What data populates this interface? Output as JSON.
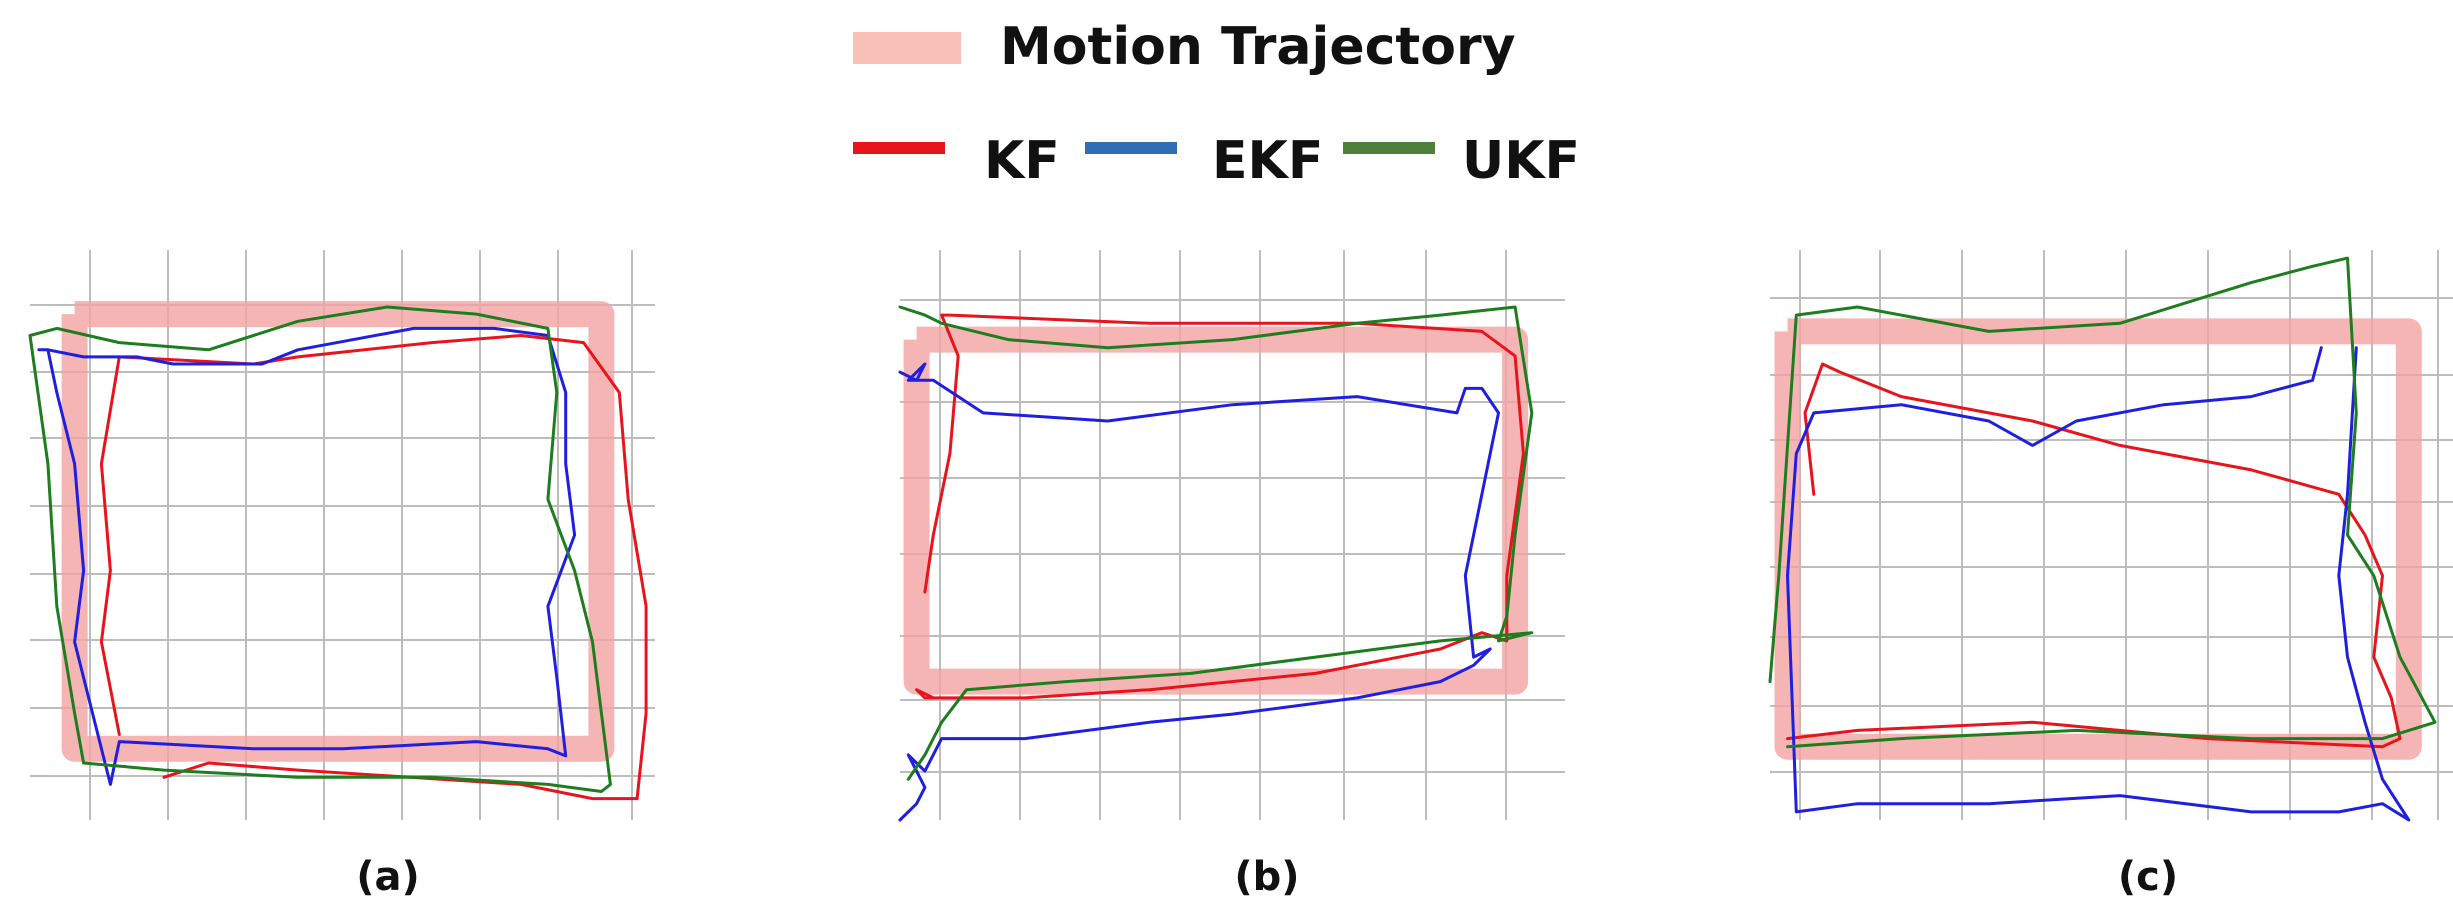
{
  "legend": {
    "motion_label": "Motion Trajectory",
    "kf_label": "KF",
    "ekf_label": "EKF",
    "ukf_label": "UKF"
  },
  "colors": {
    "motion": "#f4a3a3",
    "kf": "#e8141b",
    "ekf": "#1f1fe0",
    "ukf": "#1e7d1e",
    "legend_ekf": "#2f6db5",
    "legend_ukf": "#4f7f3a",
    "legend_motion": "#f9c0b8",
    "grid": "#bdbdbd"
  },
  "chart_data": [
    {
      "type": "line",
      "caption": "(a)",
      "grid": true,
      "xlim": [
        0,
        7
      ],
      "ylim": [
        0,
        8
      ],
      "series": [
        {
          "name": "Motion Trajectory",
          "x": [
            0.5,
            6.4,
            6.4,
            0.5,
            0.5
          ],
          "y": [
            7.1,
            7.1,
            1.0,
            1.0,
            7.1
          ]
        },
        {
          "name": "KF",
          "x": [
            1.0,
            0.8,
            0.9,
            0.8,
            1.0,
            2.5,
            3.0,
            4.5,
            5.5,
            6.2,
            6.6,
            6.7,
            6.9,
            6.9,
            6.8,
            6.3,
            5.5,
            3.0,
            2.0,
            1.5
          ],
          "y": [
            1.2,
            2.5,
            3.5,
            5.0,
            6.5,
            6.4,
            6.5,
            6.7,
            6.8,
            6.7,
            6.0,
            4.5,
            3.0,
            1.5,
            0.3,
            0.3,
            0.5,
            0.7,
            0.8,
            0.6
          ]
        },
        {
          "name": "EKF",
          "x": [
            0.1,
            0.2,
            0.6,
            1.2,
            1.6,
            2.6,
            3.0,
            4.3,
            5.2,
            5.8,
            6.0,
            6.0,
            6.1,
            5.8,
            5.9,
            6.0,
            5.8,
            5.0,
            3.5,
            2.5,
            1.0,
            0.9,
            0.7,
            0.5,
            0.6,
            0.5,
            0.3,
            0.2
          ],
          "y": [
            6.6,
            6.6,
            6.5,
            6.5,
            6.4,
            6.4,
            6.6,
            6.9,
            6.9,
            6.8,
            6.0,
            5.0,
            4.0,
            3.0,
            2.0,
            0.9,
            1.0,
            1.1,
            1.0,
            1.0,
            1.1,
            0.5,
            1.5,
            2.5,
            3.5,
            5.0,
            6.0,
            6.6
          ]
        },
        {
          "name": "UKF",
          "x": [
            0.0,
            0.3,
            1.0,
            2.0,
            3.0,
            4.0,
            5.0,
            5.8,
            5.9,
            5.8,
            6.1,
            6.3,
            6.4,
            6.5,
            6.4,
            5.8,
            4.5,
            3.0,
            1.5,
            0.6,
            0.5,
            0.3,
            0.2,
            0.0
          ],
          "y": [
            6.8,
            6.9,
            6.7,
            6.6,
            7.0,
            7.2,
            7.1,
            6.9,
            6.0,
            4.5,
            3.5,
            2.5,
            1.5,
            0.5,
            0.4,
            0.5,
            0.6,
            0.6,
            0.7,
            0.8,
            1.5,
            3.0,
            5.0,
            6.8
          ]
        }
      ]
    },
    {
      "type": "line",
      "caption": "(b)",
      "grid": true,
      "xlim": [
        0,
        8
      ],
      "ylim": [
        0,
        7
      ],
      "series": [
        {
          "name": "Motion Trajectory",
          "x": [
            0.2,
            7.4,
            7.4,
            0.2,
            0.2
          ],
          "y": [
            5.9,
            5.9,
            1.7,
            1.7,
            5.9
          ]
        },
        {
          "name": "KF",
          "x": [
            0.3,
            0.4,
            0.6,
            0.7,
            0.5,
            0.6,
            3.0,
            5.5,
            7.0,
            7.4,
            7.5,
            7.3,
            7.3,
            7.0,
            6.5,
            5.0,
            3.0,
            1.5,
            0.3,
            0.2,
            0.4
          ],
          "y": [
            2.8,
            3.5,
            4.5,
            5.7,
            6.2,
            6.2,
            6.1,
            6.1,
            6.0,
            5.7,
            4.5,
            3.0,
            2.2,
            2.3,
            2.1,
            1.8,
            1.6,
            1.5,
            1.5,
            1.6,
            1.5
          ]
        },
        {
          "name": "EKF",
          "x": [
            0.0,
            0.2,
            0.3,
            0.1,
            0.4,
            1.0,
            2.5,
            4.0,
            5.5,
            6.7,
            6.8,
            7.0,
            7.2,
            7.0,
            6.8,
            6.9,
            7.1,
            6.9,
            6.5,
            5.5,
            4.0,
            3.0,
            1.5,
            0.5,
            0.3,
            0.1,
            0.3,
            0.2,
            0.0
          ],
          "y": [
            5.5,
            5.4,
            5.6,
            5.4,
            5.4,
            5.0,
            4.9,
            5.1,
            5.2,
            5.0,
            5.3,
            5.3,
            5.0,
            4.0,
            3.0,
            2.0,
            2.1,
            1.9,
            1.7,
            1.5,
            1.3,
            1.2,
            1.0,
            1.0,
            0.6,
            0.8,
            0.4,
            0.2,
            0.0
          ]
        },
        {
          "name": "UKF",
          "x": [
            0.0,
            0.3,
            0.5,
            0.9,
            1.3,
            2.5,
            4.0,
            5.5,
            6.5,
            7.4,
            7.6,
            7.4,
            7.3,
            7.2,
            7.6,
            6.5,
            5.0,
            3.5,
            2.0,
            0.8,
            0.5,
            0.3,
            0.1
          ],
          "y": [
            6.3,
            6.2,
            6.1,
            6.0,
            5.9,
            5.8,
            5.9,
            6.1,
            6.2,
            6.3,
            5.0,
            3.5,
            2.5,
            2.2,
            2.3,
            2.2,
            2.0,
            1.8,
            1.7,
            1.6,
            1.2,
            0.8,
            0.5
          ]
        }
      ]
    },
    {
      "type": "line",
      "caption": "(c)",
      "grid": true,
      "xlim": [
        0,
        8
      ],
      "ylim": [
        0,
        7
      ],
      "series": [
        {
          "name": "Motion Trajectory",
          "x": [
            0.2,
            7.3,
            7.3,
            0.2,
            0.2
          ],
          "y": [
            6.0,
            6.0,
            0.9,
            0.9,
            6.0
          ]
        },
        {
          "name": "KF",
          "x": [
            0.5,
            0.4,
            0.6,
            0.8,
            1.5,
            3.0,
            4.0,
            5.5,
            6.5,
            6.8,
            7.0,
            6.9,
            7.1,
            7.2,
            7.0,
            5.0,
            3.0,
            1.0,
            0.2
          ],
          "y": [
            4.0,
            5.0,
            5.6,
            5.5,
            5.2,
            4.9,
            4.6,
            4.3,
            4.0,
            3.5,
            3.0,
            2.0,
            1.5,
            1.0,
            0.9,
            1.0,
            1.2,
            1.1,
            1.0
          ]
        },
        {
          "name": "EKF",
          "x": [
            6.7,
            6.6,
            6.5,
            6.6,
            6.8,
            7.0,
            7.3,
            7.0,
            6.5,
            5.5,
            4.0,
            2.5,
            1.0,
            0.3,
            0.2,
            0.3,
            0.5,
            1.5,
            2.5,
            3.0,
            3.5,
            4.5,
            5.5,
            6.2,
            6.3
          ],
          "y": [
            5.8,
            4.0,
            3.0,
            2.0,
            1.2,
            0.5,
            0.0,
            0.2,
            0.1,
            0.1,
            0.3,
            0.2,
            0.2,
            0.1,
            3.0,
            4.5,
            5.0,
            5.1,
            4.9,
            4.6,
            4.9,
            5.1,
            5.2,
            5.4,
            5.8
          ]
        },
        {
          "name": "UKF",
          "x": [
            0.0,
            0.1,
            0.3,
            1.0,
            2.5,
            4.0,
            5.5,
            6.2,
            6.6,
            6.7,
            6.6,
            6.9,
            7.2,
            7.6,
            7.0,
            5.5,
            3.5,
            1.5,
            0.2
          ],
          "y": [
            1.7,
            3.0,
            6.2,
            6.3,
            6.0,
            6.1,
            6.6,
            6.8,
            6.9,
            5.0,
            3.5,
            3.0,
            2.0,
            1.2,
            1.0,
            1.0,
            1.1,
            1.0,
            0.9
          ]
        }
      ]
    }
  ]
}
